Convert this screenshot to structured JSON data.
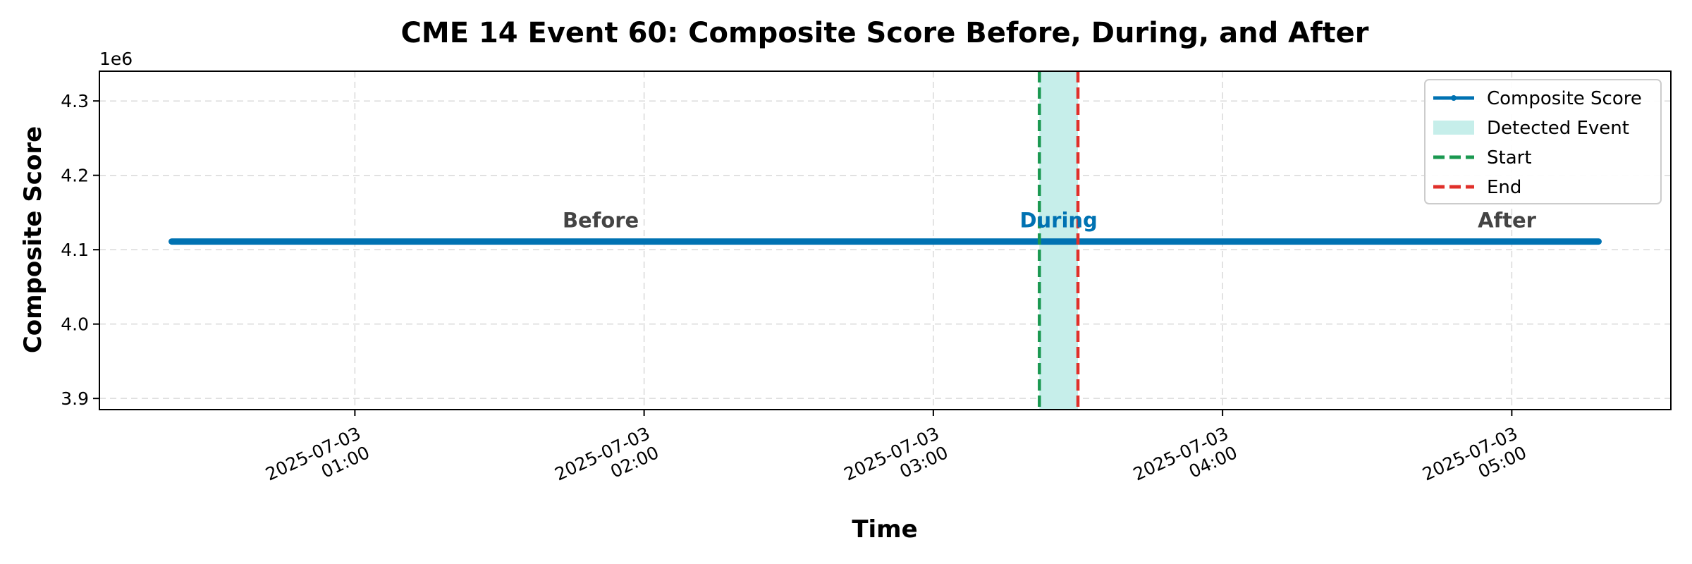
{
  "chart_data": {
    "type": "line",
    "title": "CME 14 Event 60: Composite Score Before, During, and After",
    "xlabel": "Time",
    "ylabel": "Composite Score",
    "y_multiplier": "1e6",
    "ylim": [
      3.885,
      4.34
    ],
    "y_ticks": [
      {
        "value": 3.9,
        "label": "3.9"
      },
      {
        "value": 4.0,
        "label": "4.0"
      },
      {
        "value": 4.1,
        "label": "4.1"
      },
      {
        "value": 4.2,
        "label": "4.2"
      },
      {
        "value": 4.3,
        "label": "4.3"
      }
    ],
    "xlim": [
      "2025-07-03 00:07",
      "2025-07-03 05:33"
    ],
    "x_ticks": [
      {
        "value": "2025-07-03 01:00",
        "line1": "2025-07-03",
        "line2": "01:00"
      },
      {
        "value": "2025-07-03 02:00",
        "line1": "2025-07-03",
        "line2": "02:00"
      },
      {
        "value": "2025-07-03 03:00",
        "line1": "2025-07-03",
        "line2": "03:00"
      },
      {
        "value": "2025-07-03 04:00",
        "line1": "2025-07-03",
        "line2": "04:00"
      },
      {
        "value": "2025-07-03 05:00",
        "line1": "2025-07-03",
        "line2": "05:00"
      }
    ],
    "grid": true,
    "series": [
      {
        "name": "Composite Score",
        "color": "#0072b2",
        "x": [
          "2025-07-03 00:22",
          "2025-07-03 01:00",
          "2025-07-03 02:00",
          "2025-07-03 03:00",
          "2025-07-03 03:22",
          "2025-07-03 03:30",
          "2025-07-03 04:00",
          "2025-07-03 05:00",
          "2025-07-03 05:18"
        ],
        "values": [
          4.111,
          4.111,
          4.111,
          4.111,
          4.111,
          4.111,
          4.111,
          4.111,
          4.111
        ]
      }
    ],
    "event": {
      "label": "Detected Event",
      "start": "2025-07-03 03:22",
      "end": "2025-07-03 03:30",
      "fill_color": "#c6eeea",
      "start_label": "Start",
      "start_color": "#1a9850",
      "end_label": "End",
      "end_color": "#e0302a"
    },
    "annotations": [
      {
        "text": "Before",
        "x": "2025-07-03 01:51",
        "y": 4.13,
        "color": "#444444"
      },
      {
        "text": "During",
        "x": "2025-07-03 03:26",
        "y": 4.13,
        "color": "#0072b2"
      },
      {
        "text": "After",
        "x": "2025-07-03 04:59",
        "y": 4.13,
        "color": "#444444"
      }
    ],
    "legend": {
      "position": "top-right",
      "entries": [
        {
          "label": "Composite Score",
          "kind": "line-marker",
          "color": "#0072b2"
        },
        {
          "label": "Detected Event",
          "kind": "patch",
          "color": "#c6eeea"
        },
        {
          "label": "Start",
          "kind": "dashed",
          "color": "#1a9850"
        },
        {
          "label": "End",
          "kind": "dashed",
          "color": "#e0302a"
        }
      ]
    }
  }
}
